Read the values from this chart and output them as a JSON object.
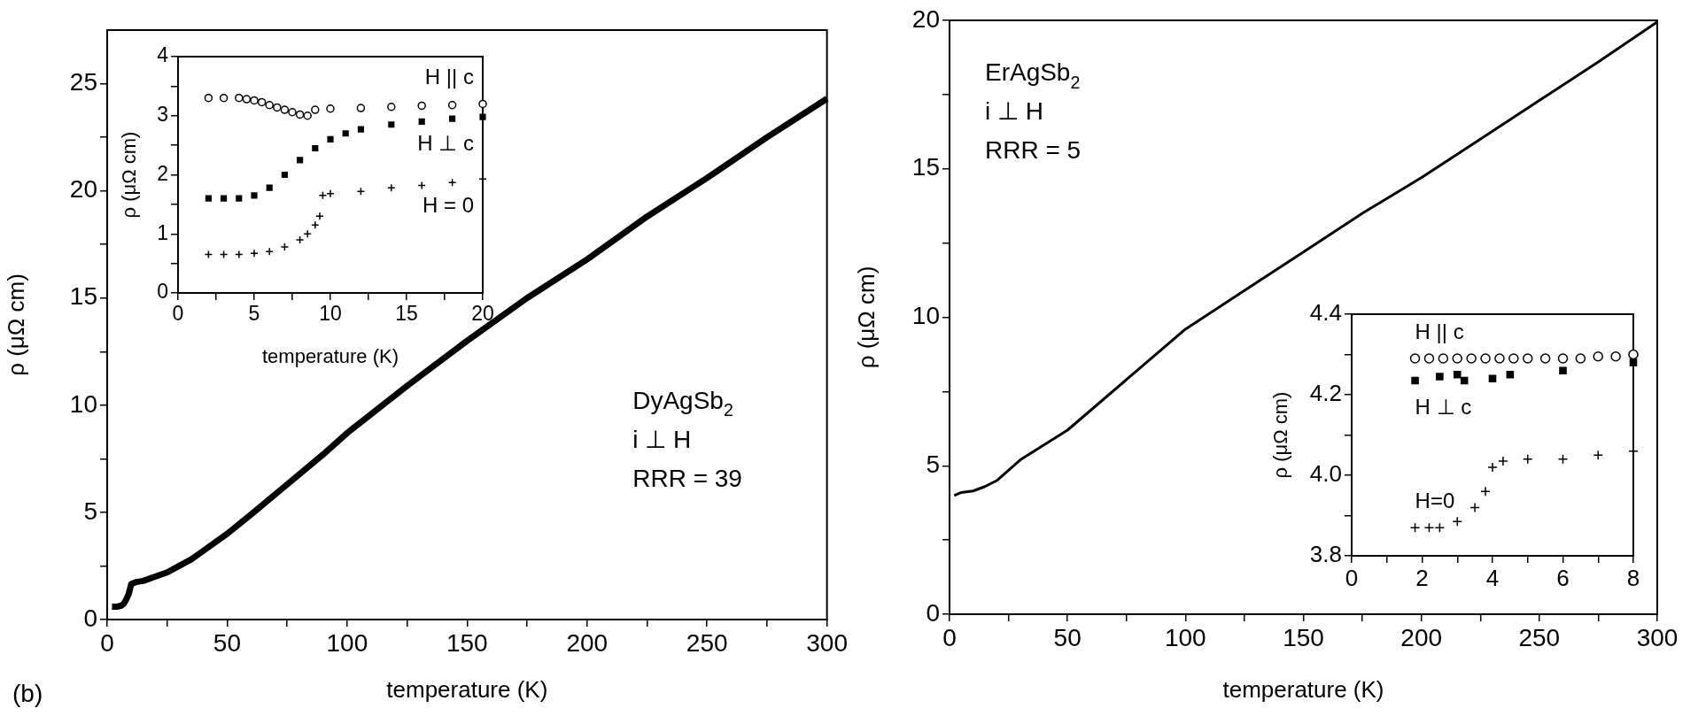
{
  "chart_data": [
    {
      "type": "line",
      "xlabel": "temperature (K)",
      "ylabel": "ρ (μΩ cm)",
      "annotations": [
        "(b)",
        "DyAgSb$_{2}$",
        "i ⊥ H",
        "RRR = 39"
      ],
      "xlim": [
        0,
        300
      ],
      "xticks": [
        0,
        {
          "value": 25,
          "label": null
        },
        50,
        {
          "value": 75,
          "label": null
        },
        100,
        {
          "value": 125,
          "label": null
        },
        150,
        {
          "value": 175,
          "label": null
        },
        200,
        {
          "value": 225,
          "label": null
        },
        250,
        {
          "value": 275,
          "label": null
        },
        300
      ],
      "ylim": [
        0,
        27.5
      ],
      "yticks": [
        0,
        {
          "value": 2.5,
          "label": null
        },
        5,
        {
          "value": 7.5,
          "label": null
        },
        10,
        {
          "value": 12.5,
          "label": null
        },
        15,
        {
          "value": 17.5,
          "label": null
        },
        20,
        {
          "value": 22.5,
          "label": null
        },
        25
      ],
      "legend": false,
      "series": [
        {
          "color": "#000000",
          "x": [
            2,
            4,
            6,
            7,
            8,
            9,
            10,
            12,
            15,
            20,
            25,
            30,
            35,
            40,
            50,
            60,
            75,
            90,
            100,
            125,
            150,
            175,
            200,
            225,
            250,
            275,
            300
          ],
          "values": [
            0.6,
            0.6,
            0.65,
            0.75,
            0.95,
            1.2,
            1.65,
            1.75,
            1.8,
            2.0,
            2.2,
            2.5,
            2.8,
            3.2,
            4.0,
            4.9,
            6.3,
            7.7,
            8.7,
            10.9,
            13.0,
            15.0,
            16.8,
            18.8,
            20.6,
            22.5,
            24.3
          ]
        }
      ]
    },
    {
      "type": "scatter",
      "xlabel": "temperature (K)",
      "ylabel": "ρ (μΩ cm)",
      "xlim": [
        0,
        20
      ],
      "xticks": [
        0,
        {
          "value": 2.5,
          "label": null
        },
        5,
        {
          "value": 7.5,
          "label": null
        },
        10,
        {
          "value": 12.5,
          "label": null
        },
        15,
        {
          "value": 17.5,
          "label": null
        },
        20
      ],
      "ylim": [
        0,
        4
      ],
      "yticks": [
        0,
        {
          "value": 0.5,
          "label": null
        },
        1,
        {
          "value": 1.5,
          "label": null
        },
        2,
        {
          "value": 2.5,
          "label": null
        },
        3,
        {
          "value": 3.5,
          "label": null
        },
        4
      ],
      "legend": false,
      "series": [
        {
          "name": "H || c",
          "color": "#000000",
          "marker": "circle",
          "x": [
            2,
            3,
            4,
            4.5,
            5,
            5.5,
            6,
            6.5,
            7,
            7.5,
            8,
            8.5,
            9,
            10,
            12,
            14,
            16,
            18,
            20
          ],
          "values": [
            3.3,
            3.3,
            3.3,
            3.28,
            3.26,
            3.23,
            3.18,
            3.14,
            3.1,
            3.06,
            3.02,
            3.0,
            3.1,
            3.12,
            3.13,
            3.15,
            3.17,
            3.18,
            3.2
          ]
        },
        {
          "name": "H ⊥ c",
          "color": "#000000",
          "marker": "square",
          "x": [
            2,
            3,
            4,
            5,
            6,
            7,
            8,
            9,
            10,
            11,
            12,
            14,
            16,
            18,
            20
          ],
          "values": [
            1.6,
            1.6,
            1.6,
            1.65,
            1.78,
            2.0,
            2.25,
            2.45,
            2.6,
            2.7,
            2.77,
            2.85,
            2.9,
            2.95,
            2.98
          ]
        },
        {
          "name": "H = 0",
          "color": "#000000",
          "marker": "cross",
          "x": [
            2,
            3,
            4,
            5,
            6,
            7,
            8,
            8.5,
            9,
            9.3,
            9.5,
            10,
            12,
            14,
            16,
            18,
            20
          ],
          "values": [
            0.65,
            0.65,
            0.65,
            0.67,
            0.7,
            0.78,
            0.9,
            1.0,
            1.15,
            1.3,
            1.65,
            1.68,
            1.72,
            1.78,
            1.82,
            1.87,
            1.93
          ]
        }
      ]
    },
    {
      "type": "line",
      "xlabel": "temperature (K)",
      "ylabel": "ρ (μΩ cm)",
      "annotations": [
        "ErAgSb$_{2}$",
        "i ⊥ H",
        "RRR = 5"
      ],
      "xlim": [
        0,
        300
      ],
      "xticks": [
        0,
        {
          "value": 25,
          "label": null
        },
        50,
        {
          "value": 75,
          "label": null
        },
        100,
        {
          "value": 125,
          "label": null
        },
        150,
        {
          "value": 175,
          "label": null
        },
        200,
        {
          "value": 225,
          "label": null
        },
        250,
        {
          "value": 275,
          "label": null
        },
        300
      ],
      "ylim": [
        0,
        20
      ],
      "yticks": [
        0,
        {
          "value": 2.5,
          "label": null
        },
        5,
        {
          "value": 7.5,
          "label": null
        },
        10,
        {
          "value": 12.5,
          "label": null
        },
        15,
        {
          "value": 17.5,
          "label": null
        },
        20
      ],
      "legend": false,
      "series": [
        {
          "color": "#000000",
          "x": [
            2,
            5,
            10,
            15,
            20,
            25,
            30,
            40,
            50,
            75,
            100,
            125,
            150,
            175,
            200,
            225,
            250,
            275,
            300
          ],
          "values": [
            4.0,
            4.1,
            4.15,
            4.3,
            4.5,
            4.85,
            5.2,
            5.7,
            6.2,
            7.9,
            9.6,
            10.9,
            12.2,
            13.5,
            14.7,
            16.0,
            17.3,
            18.6,
            19.95
          ]
        }
      ]
    },
    {
      "type": "scatter",
      "ylabel": "ρ (μΩ cm)",
      "xlim": [
        0,
        8
      ],
      "xticks": [
        0,
        {
          "value": 1,
          "label": null
        },
        2,
        {
          "value": 3,
          "label": null
        },
        4,
        {
          "value": 5,
          "label": null
        },
        6,
        {
          "value": 7,
          "label": null
        },
        8
      ],
      "ylim": [
        3.8,
        4.4
      ],
      "yticks": [
        {
          "value": 3.8,
          "label": "3.8"
        },
        {
          "value": 3.9,
          "label": null
        },
        {
          "value": 4.0,
          "label": "4.0"
        },
        {
          "value": 4.1,
          "label": null
        },
        {
          "value": 4.2,
          "label": "4.2"
        },
        {
          "value": 4.3,
          "label": null
        },
        {
          "value": 4.4,
          "label": "4.4"
        }
      ],
      "legend": false,
      "series": [
        {
          "name": "H || c",
          "color": "#000000",
          "marker": "circle",
          "x": [
            1.8,
            2.2,
            2.6,
            3,
            3.4,
            3.8,
            4.2,
            4.6,
            5,
            5.5,
            6,
            6.5,
            7,
            7.5,
            8
          ],
          "values": [
            4.29,
            4.29,
            4.29,
            4.29,
            4.29,
            4.29,
            4.29,
            4.29,
            4.29,
            4.29,
            4.29,
            4.29,
            4.295,
            4.295,
            4.3
          ]
        },
        {
          "name": "H ⊥ c",
          "color": "#000000",
          "marker": "square",
          "x": [
            1.8,
            2.5,
            3.0,
            3.2,
            4.0,
            4.5,
            6,
            8
          ],
          "values": [
            4.235,
            4.245,
            4.25,
            4.235,
            4.24,
            4.25,
            4.26,
            4.28
          ]
        },
        {
          "name": "H=0",
          "color": "#000000",
          "marker": "cross",
          "x": [
            1.8,
            2.2,
            2.5,
            3,
            3.5,
            3.8,
            4,
            4.3,
            5,
            6,
            7,
            8
          ],
          "values": [
            3.87,
            3.87,
            3.87,
            3.885,
            3.92,
            3.96,
            4.02,
            4.035,
            4.04,
            4.04,
            4.05,
            4.06
          ]
        }
      ]
    }
  ]
}
